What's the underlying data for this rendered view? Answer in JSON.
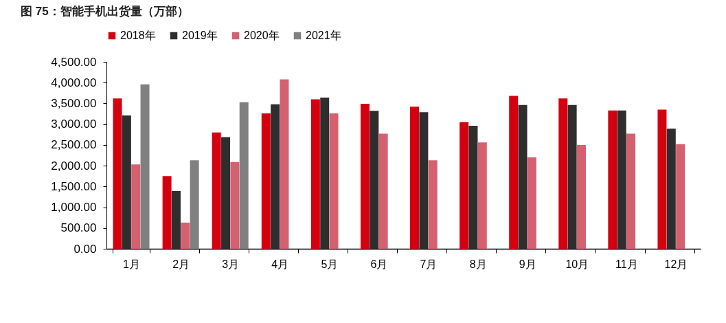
{
  "chart_data": {
    "type": "bar",
    "title": "图 75：智能手机出货量（万部）",
    "categories": [
      "1月",
      "2月",
      "3月",
      "4月",
      "5月",
      "6月",
      "7月",
      "8月",
      "9月",
      "10月",
      "11月",
      "12月"
    ],
    "series": [
      {
        "name": "2018年",
        "color": "#d40010",
        "values": [
          3620,
          1750,
          2800,
          3260,
          3600,
          3490,
          3420,
          3050,
          3680,
          3620,
          3330,
          3350
        ]
      },
      {
        "name": "2019年",
        "color": "#2e2e2e",
        "values": [
          3210,
          1390,
          2690,
          3480,
          3640,
          3320,
          3290,
          2960,
          3460,
          3460,
          3330,
          2890
        ]
      },
      {
        "name": "2020年",
        "color": "#d46070",
        "values": [
          2030,
          630,
          2090,
          4080,
          3260,
          2770,
          2130,
          2560,
          2200,
          2500,
          2770,
          2520
        ]
      },
      {
        "name": "2021年",
        "color": "#808080",
        "values": [
          3960,
          2130,
          3530,
          null,
          null,
          null,
          null,
          null,
          null,
          null,
          null,
          null
        ]
      }
    ],
    "ylim": [
      0,
      4500
    ],
    "yticks": [
      {
        "value": 0,
        "label": "0.00"
      },
      {
        "value": 500,
        "label": "500.00"
      },
      {
        "value": 1000,
        "label": "1,000.00"
      },
      {
        "value": 1500,
        "label": "1,500.00"
      },
      {
        "value": 2000,
        "label": "2,000.00"
      },
      {
        "value": 2500,
        "label": "2,500.00"
      },
      {
        "value": 3000,
        "label": "3,000.00"
      },
      {
        "value": 3500,
        "label": "3,500.00"
      },
      {
        "value": 4000,
        "label": "4,000.00"
      },
      {
        "value": 4500,
        "label": "4,500.00"
      }
    ],
    "grid": false,
    "legend": "top"
  }
}
